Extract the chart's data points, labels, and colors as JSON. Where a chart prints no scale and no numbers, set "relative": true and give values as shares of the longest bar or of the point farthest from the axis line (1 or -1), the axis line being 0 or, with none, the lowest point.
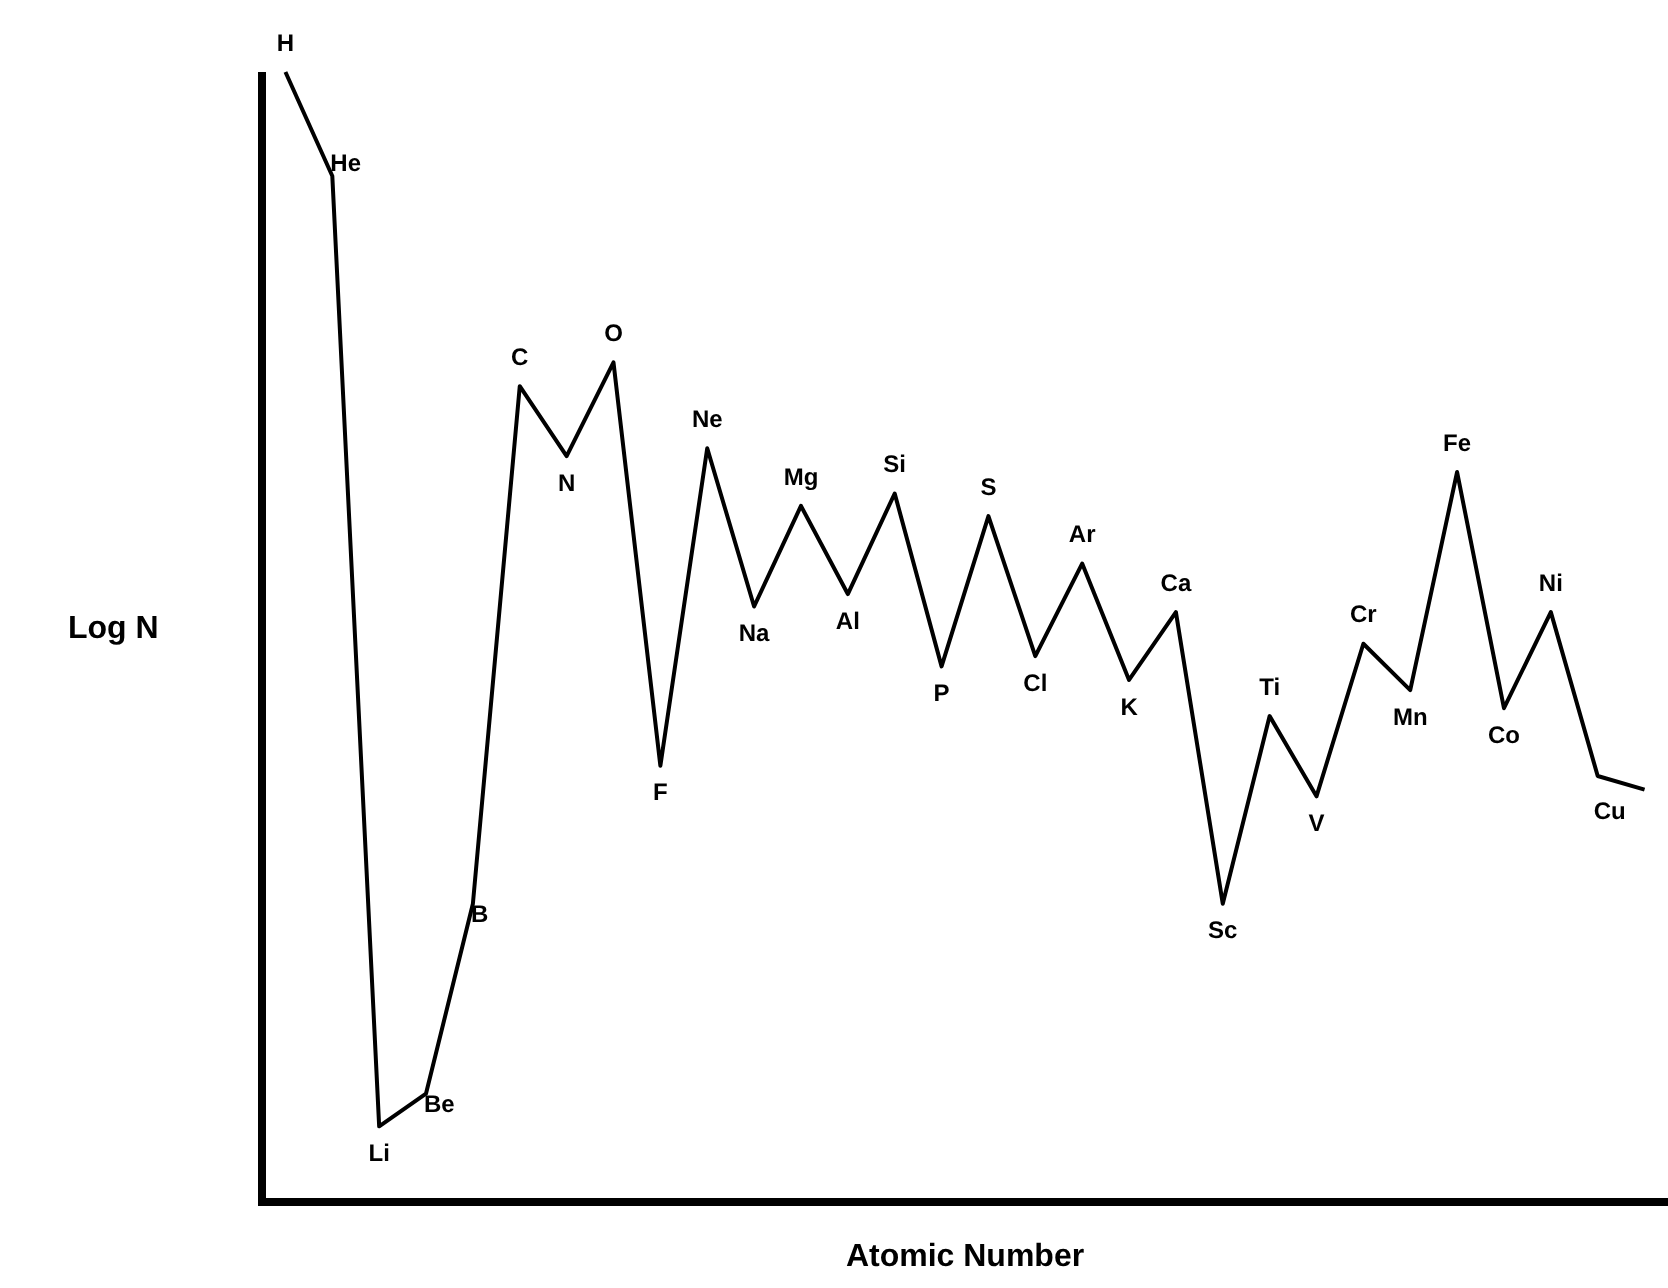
{
  "chart_data": {
    "type": "line",
    "relative": true,
    "xlabel": "Atomic Number",
    "ylabel": "Log N",
    "color": "#000000",
    "marker": "none",
    "legend": false,
    "grid": false,
    "categories": [
      null,
      null,
      null,
      null,
      null,
      null,
      null,
      null,
      null,
      null,
      null,
      null,
      null,
      null,
      null,
      null,
      null,
      null,
      null,
      null,
      null,
      null,
      null,
      null,
      null,
      null,
      null,
      null,
      null,
      null
    ],
    "values": [
      1.0,
      0.908,
      0.067,
      0.096,
      0.264,
      0.722,
      0.66,
      0.743,
      0.386,
      0.667,
      0.527,
      0.616,
      0.538,
      0.627,
      0.474,
      0.607,
      0.483,
      0.565,
      0.462,
      0.522,
      0.264,
      0.43,
      0.359,
      0.494,
      0.453,
      0.646,
      0.437,
      0.522,
      0.377,
      0.365
    ],
    "annotations": [
      "H",
      "He",
      "Li",
      "Be",
      "B",
      "C",
      "N",
      "O",
      "F",
      "Ne",
      "Na",
      "Mg",
      "Al",
      "Si",
      "P",
      "S",
      "Cl",
      "Ar",
      "K",
      "Ca",
      "Sc",
      "Ti",
      "V",
      "Cr",
      "Mn",
      "Fe",
      "Co",
      "Ni",
      "Cu"
    ]
  }
}
